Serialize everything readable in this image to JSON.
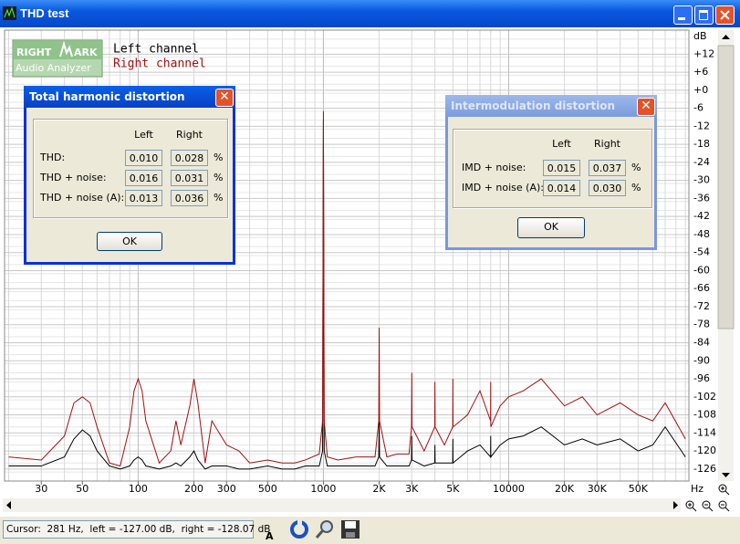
{
  "window": {
    "title": "THD test"
  },
  "logo": {
    "top_left": "RIGHT",
    "top_right": "ARK",
    "bottom": "Audio Analyzer"
  },
  "chart_data": {
    "type": "line",
    "y_label": "dB",
    "x_label": "Hz",
    "log_x": true,
    "grid": true,
    "xlim": [
      19,
      94000
    ],
    "ylim": [
      -130,
      20
    ],
    "xticks": [
      30,
      50,
      100,
      200,
      300,
      500,
      1000,
      {
        "value": 2000,
        "label": "2K"
      },
      {
        "value": 3000,
        "label": "3K"
      },
      {
        "value": 5000,
        "label": "5K"
      },
      10000,
      {
        "value": 20000,
        "label": "20K"
      },
      {
        "value": 30000,
        "label": "30K"
      },
      {
        "value": 50000,
        "label": "50K"
      }
    ],
    "yticks": [
      {
        "value": 12,
        "label": "+12"
      },
      {
        "value": 6,
        "label": "+6"
      },
      {
        "value": 0,
        "label": "+0"
      },
      -6,
      -12,
      -18,
      -24,
      -30,
      -36,
      -42,
      -48,
      -54,
      -60,
      -66,
      -72,
      -78,
      -84,
      -90,
      -96,
      -102,
      -108,
      -114,
      -120,
      -126
    ],
    "x": [
      20,
      30,
      40,
      45,
      50,
      55,
      60,
      70,
      80,
      90,
      95,
      100,
      105,
      110,
      130,
      150,
      160,
      170,
      190,
      200,
      210,
      230,
      250,
      300,
      350,
      400,
      500,
      600,
      700,
      800,
      950,
      990,
      1000,
      1010,
      1050,
      1200,
      1500,
      1900,
      1990,
      2000,
      2010,
      2200,
      2500,
      2900,
      2990,
      3000,
      3010,
      3500,
      3990,
      4000,
      4010,
      4500,
      4990,
      5000,
      5010,
      6000,
      7000,
      7990,
      8000,
      8010,
      9000,
      10000,
      12000,
      15000,
      20000,
      25000,
      30000,
      40000,
      50000,
      60000,
      70000,
      90000
    ],
    "series": [
      {
        "name": "Left channel",
        "color": "#000000",
        "values": [
          -125,
          -125,
          -122,
          -116,
          -113,
          -115,
          -120,
          -125,
          -126,
          -125,
          -123,
          -122,
          -123,
          -125,
          -126,
          -125,
          -124,
          -125,
          -122,
          -120,
          -123,
          -126,
          -125,
          -125,
          -126,
          -126,
          -125,
          -126,
          -126,
          -125,
          -125,
          -120,
          -10,
          -120,
          -125,
          -125,
          -125,
          -125,
          -122,
          -110,
          -122,
          -125,
          -125,
          -125,
          -123,
          -115,
          -123,
          -125,
          -124,
          -118,
          -124,
          -124,
          -124,
          -116,
          -124,
          -120,
          -118,
          -122,
          -115,
          -122,
          -118,
          -116,
          -115,
          -112,
          -118,
          -116,
          -118,
          -116,
          -120,
          -118,
          -112,
          -122
        ]
      },
      {
        "name": "Right channel",
        "color": "#a01010",
        "values": [
          -122,
          -123,
          -115,
          -104,
          -102,
          -104,
          -112,
          -124,
          -125,
          -112,
          -100,
          -96,
          -100,
          -110,
          -124,
          -120,
          -110,
          -118,
          -105,
          -96,
          -104,
          -124,
          -110,
          -118,
          -120,
          -124,
          -123,
          -124,
          -124,
          -123,
          -121,
          -110,
          -7,
          -110,
          -122,
          -123,
          -122,
          -122,
          -110,
          -79,
          -110,
          -122,
          -121,
          -121,
          -112,
          -94,
          -112,
          -120,
          -112,
          -97,
          -112,
          -118,
          -112,
          -96,
          -112,
          -108,
          -100,
          -110,
          -97,
          -112,
          -105,
          -102,
          -100,
          -96,
          -105,
          -102,
          -108,
          -104,
          -108,
          -110,
          -104,
          -116
        ]
      }
    ]
  },
  "thd_dialog": {
    "title": "Total harmonic distortion",
    "columns": [
      "Left",
      "Right"
    ],
    "rows": [
      [
        "THD:",
        "0.010",
        "0.028",
        "%"
      ],
      [
        "THD + noise:",
        "0.016",
        "0.031",
        "%"
      ],
      [
        "THD + noise (A):",
        "0.013",
        "0.036",
        "%"
      ]
    ],
    "button": "OK"
  },
  "imd_dialog": {
    "title": "Intermodulation distortion",
    "columns": [
      "Left",
      "Right"
    ],
    "rows": [
      [
        "IMD + noise:",
        "0.015",
        "0.037",
        "%"
      ],
      [
        "IMD + noise (A):",
        "0.014",
        "0.030",
        "%"
      ]
    ],
    "button": "OK"
  },
  "status": {
    "cursor": "Cursor:  281 Hz,  left = -127.00 dB,  right = -128.07 dB"
  }
}
